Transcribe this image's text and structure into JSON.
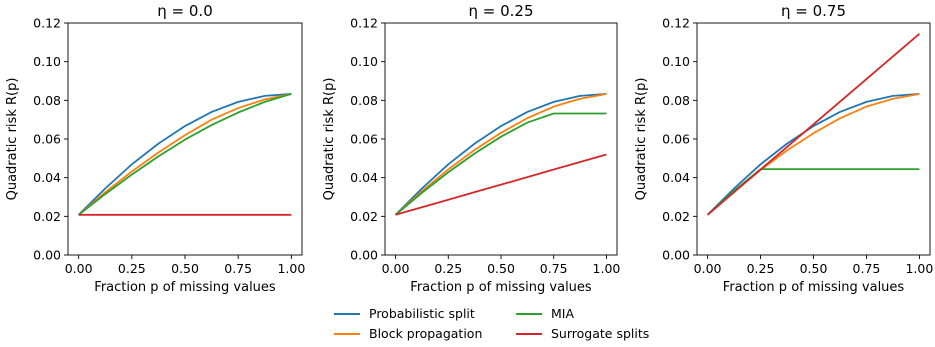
{
  "chart_data": [
    {
      "type": "line",
      "title": "η = 0.0",
      "xlabel": "Fraction p of missing values",
      "ylabel": "Quadratic risk R(p)",
      "xlim": [
        -0.05,
        1.05
      ],
      "ylim": [
        0,
        0.12
      ],
      "xticks": [
        "0.00",
        "0.25",
        "0.50",
        "0.75",
        "1.00"
      ],
      "yticks": [
        "0.00",
        "0.02",
        "0.04",
        "0.06",
        "0.08",
        "0.10",
        "0.12"
      ],
      "grid": false,
      "x": [
        0,
        0.125,
        0.25,
        0.375,
        0.5,
        0.625,
        0.75,
        0.875,
        1.0
      ],
      "series": [
        {
          "name": "Probabilistic split",
          "color": "#1f77b4",
          "values": [
            0.0208,
            0.0344,
            0.0469,
            0.0576,
            0.0667,
            0.074,
            0.0792,
            0.0823,
            0.0833
          ]
        },
        {
          "name": "Block propagation",
          "color": "#ff7f0e",
          "values": [
            0.0208,
            0.0325,
            0.0432,
            0.053,
            0.062,
            0.07,
            0.076,
            0.0805,
            0.0833
          ]
        },
        {
          "name": "MIA",
          "color": "#2ca02c",
          "values": [
            0.0208,
            0.0315,
            0.0416,
            0.051,
            0.0597,
            0.0672,
            0.0737,
            0.0792,
            0.0833
          ]
        },
        {
          "name": "Surrogate splits",
          "color": "#d62728",
          "values": [
            0.0208,
            0.0208,
            0.0208,
            0.0208,
            0.0208,
            0.0208,
            0.0208,
            0.0208,
            0.0208
          ]
        }
      ]
    },
    {
      "type": "line",
      "title": "η = 0.25",
      "xlabel": "Fraction p of missing values",
      "ylabel": "Quadratic risk R(p)",
      "xlim": [
        -0.05,
        1.05
      ],
      "ylim": [
        0,
        0.12
      ],
      "xticks": [
        "0.00",
        "0.25",
        "0.50",
        "0.75",
        "1.00"
      ],
      "yticks": [
        "0.00",
        "0.02",
        "0.04",
        "0.06",
        "0.08",
        "0.10",
        "0.12"
      ],
      "grid": false,
      "x": [
        0,
        0.125,
        0.25,
        0.375,
        0.5,
        0.625,
        0.75,
        0.875,
        1.0
      ],
      "series": [
        {
          "name": "Probabilistic split",
          "color": "#1f77b4",
          "values": [
            0.0208,
            0.0344,
            0.0469,
            0.0576,
            0.0667,
            0.074,
            0.0792,
            0.0823,
            0.0833
          ]
        },
        {
          "name": "Block propagation",
          "color": "#ff7f0e",
          "values": [
            0.0208,
            0.033,
            0.0443,
            0.0544,
            0.0632,
            0.0708,
            0.0768,
            0.0808,
            0.0833
          ]
        },
        {
          "name": "MIA",
          "color": "#2ca02c",
          "values": [
            0.0208,
            0.0322,
            0.0428,
            0.0525,
            0.0612,
            0.0685,
            0.0732,
            0.0732,
            0.0732
          ]
        },
        {
          "name": "Surrogate splits",
          "color": "#d62728",
          "values": [
            0.0208,
            0.0247,
            0.0286,
            0.0325,
            0.0364,
            0.0403,
            0.0442,
            0.0481,
            0.052
          ]
        }
      ]
    },
    {
      "type": "line",
      "title": "η = 0.75",
      "xlabel": "Fraction p of missing values",
      "ylabel": "Quadratic risk R(p)",
      "xlim": [
        -0.05,
        1.05
      ],
      "ylim": [
        0,
        0.12
      ],
      "xticks": [
        "0.00",
        "0.25",
        "0.50",
        "0.75",
        "1.00"
      ],
      "yticks": [
        "0.00",
        "0.02",
        "0.04",
        "0.06",
        "0.08",
        "0.10",
        "0.12"
      ],
      "grid": false,
      "x": [
        0,
        0.125,
        0.25,
        0.375,
        0.5,
        0.625,
        0.75,
        0.875,
        1.0
      ],
      "series": [
        {
          "name": "Probabilistic split",
          "color": "#1f77b4",
          "values": [
            0.0208,
            0.0344,
            0.0469,
            0.0576,
            0.0667,
            0.074,
            0.0792,
            0.0823,
            0.0833
          ]
        },
        {
          "name": "Block propagation",
          "color": "#ff7f0e",
          "values": [
            0.0208,
            0.0328,
            0.044,
            0.0541,
            0.063,
            0.0707,
            0.0768,
            0.0808,
            0.0833
          ]
        },
        {
          "name": "MIA",
          "color": "#2ca02c",
          "values": [
            0.0208,
            0.0332,
            0.0444,
            0.0444,
            0.0444,
            0.0444,
            0.0444,
            0.0444,
            0.0444
          ]
        },
        {
          "name": "Surrogate splits",
          "color": "#d62728",
          "values": [
            0.0208,
            0.0325,
            0.0442,
            0.0559,
            0.0676,
            0.0793,
            0.091,
            0.1027,
            0.1144
          ]
        }
      ]
    }
  ],
  "legend": {
    "placement": "bottom-center",
    "entries": [
      {
        "label": "Probabilistic split",
        "color": "#1f77b4"
      },
      {
        "label": "MIA",
        "color": "#2ca02c"
      },
      {
        "label": "Block propagation",
        "color": "#ff7f0e"
      },
      {
        "label": "Surrogate splits",
        "color": "#d62728"
      }
    ]
  }
}
